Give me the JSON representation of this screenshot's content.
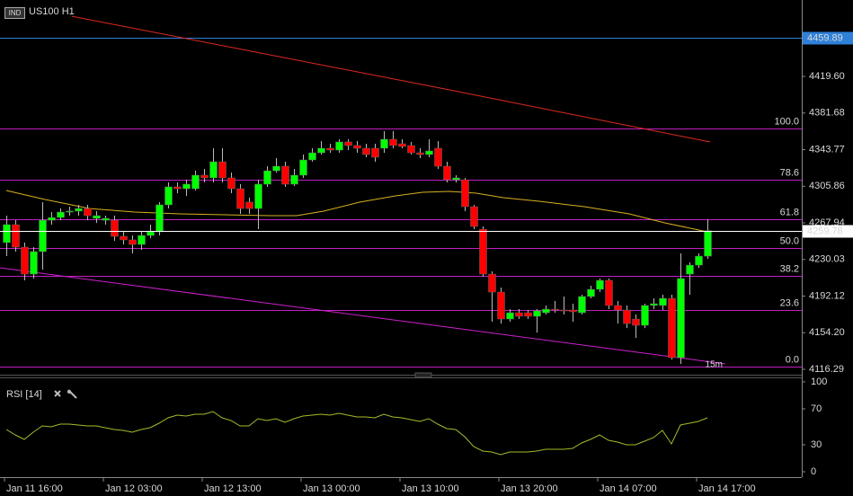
{
  "chart_data": [
    {
      "type": "candlestick",
      "title": "US100 H1",
      "badge": "IND",
      "categories": [
        "Jan 11 16:00",
        null,
        null,
        null,
        null,
        null,
        null,
        null,
        null,
        null,
        null,
        "Jan 12 03:00",
        null,
        null,
        null,
        null,
        null,
        null,
        null,
        null,
        null,
        null,
        "Jan 12 13:00",
        null,
        null,
        null,
        null,
        null,
        null,
        null,
        null,
        null,
        null,
        "Jan 13 00:00",
        null,
        null,
        null,
        null,
        null,
        null,
        null,
        null,
        null,
        null,
        "Jan 13 10:00",
        null,
        null,
        null,
        null,
        null,
        null,
        null,
        null,
        null,
        null,
        "Jan 13 20:00",
        null,
        null,
        null,
        null,
        null,
        null,
        null,
        null,
        null,
        null,
        "Jan 14 07:00",
        null,
        null,
        null,
        null,
        null,
        null,
        null,
        null,
        null,
        null,
        "Jan 14 17:00",
        null
      ],
      "open": [
        4247.5,
        4266.1,
        4242.8,
        4214.9,
        4238.2,
        4270.7,
        4273.5,
        4279.1,
        4280.1,
        4282.8,
        4272.6,
        4270.7,
        4270.7,
        4254.0,
        4250.3,
        4245.6,
        4254.9,
        4258.7,
        4286.6,
        4305.2,
        4303.3,
        4303.3,
        4317.3,
        4314.5,
        4331.2,
        4314.5,
        4303.3,
        4289.4,
        4282.8,
        4308.0,
        4321.9,
        4326.6,
        4308.0,
        4317.3,
        4333.1,
        4340.5,
        4345.2,
        4343.3,
        4351.7,
        4348.0,
        4345.2,
        4345.2,
        4345.2,
        4354.5,
        4349.8,
        4348.0,
        4340.5,
        4338.7,
        4345.2,
        4326.6,
        4312.6,
        4312.6,
        4284.7,
        4261.4,
        4214.9,
        4196.3,
        4168.4,
        4174.9,
        4174.9,
        4171.2,
        4174.9,
        4178.6,
        4177.7,
        4177.7,
        4174.9,
        4191.7,
        4199.1,
        4208.4,
        4182.4,
        4177.7,
        4168.4,
        4161.9,
        4182.4,
        4182.4,
        4189.8,
        4128.4,
        4214.9,
        4224.2,
        4233.5
      ],
      "high": [
        4275.4,
        4270.7,
        4247.5,
        4242.8,
        4289.4,
        4279.1,
        4282.8,
        4284.7,
        4286.6,
        4286.6,
        4280.1,
        4275.4,
        4275.4,
        4258.7,
        4254.9,
        4258.7,
        4266.1,
        4289.4,
        4309.8,
        4309.8,
        4312.6,
        4321.9,
        4323.8,
        4345.2,
        4345.2,
        4320.1,
        4308.0,
        4294.0,
        4312.6,
        4326.6,
        4335.0,
        4331.2,
        4323.8,
        4338.7,
        4345.2,
        4352.6,
        4349.8,
        4354.5,
        4354.5,
        4352.6,
        4349.8,
        4349.8,
        4362.9,
        4362.9,
        4354.5,
        4351.7,
        4345.2,
        4354.5,
        4352.6,
        4331.2,
        4317.3,
        4314.5,
        4286.6,
        4264.2,
        4217.7,
        4201.0,
        4178.6,
        4178.6,
        4177.7,
        4178.6,
        4182.4,
        4187.0,
        4191.7,
        4184.2,
        4193.5,
        4202.8,
        4210.3,
        4210.3,
        4187.0,
        4182.4,
        4173.1,
        4184.2,
        4189.8,
        4193.5,
        4193.5,
        4236.3,
        4227.0,
        4236.3,
        4271.7
      ],
      "low": [
        4233.5,
        4238.2,
        4208.4,
        4210.3,
        4219.6,
        4266.1,
        4270.7,
        4275.4,
        4275.4,
        4270.7,
        4267.9,
        4266.1,
        4249.4,
        4245.6,
        4236.3,
        4240.0,
        4252.1,
        4254.9,
        4282.8,
        4298.7,
        4295.9,
        4301.5,
        4309.8,
        4309.8,
        4309.8,
        4298.7,
        4277.3,
        4277.3,
        4261.4,
        4305.2,
        4320.1,
        4305.2,
        4306.1,
        4314.5,
        4331.2,
        4338.7,
        4340.5,
        4340.5,
        4343.3,
        4340.5,
        4335.9,
        4331.2,
        4340.5,
        4345.2,
        4345.2,
        4338.7,
        4335.0,
        4335.9,
        4323.8,
        4309.8,
        4309.8,
        4280.1,
        4261.4,
        4212.1,
        4165.6,
        4163.7,
        4165.6,
        4168.4,
        4168.4,
        4154.4,
        4173.1,
        4174.9,
        4173.1,
        4165.6,
        4173.1,
        4189.8,
        4196.3,
        4178.6,
        4163.7,
        4159.0,
        4148.9,
        4159.0,
        4178.6,
        4177.7,
        4126.5,
        4121.9,
        4193.5,
        4221.4,
        4230.7
      ],
      "close": [
        4266.1,
        4242.8,
        4214.9,
        4238.2,
        4270.7,
        4273.5,
        4279.1,
        4280.1,
        4282.8,
        4275.4,
        4275.4,
        4272.6,
        4254.0,
        4250.3,
        4245.6,
        4254.9,
        4258.7,
        4286.6,
        4305.2,
        4303.3,
        4308.0,
        4317.3,
        4314.5,
        4331.2,
        4314.5,
        4303.3,
        4282.8,
        4282.8,
        4308.0,
        4321.9,
        4326.6,
        4308.0,
        4317.3,
        4333.1,
        4340.5,
        4345.2,
        4343.3,
        4351.7,
        4348.0,
        4345.2,
        4338.7,
        4335.9,
        4354.5,
        4348.0,
        4347.0,
        4340.5,
        4338.7,
        4342.4,
        4326.6,
        4312.6,
        4314.5,
        4284.7,
        4264.2,
        4214.9,
        4196.3,
        4168.4,
        4174.9,
        4171.2,
        4171.2,
        4176.8,
        4178.6,
        4177.7,
        4176.8,
        4175.9,
        4191.7,
        4199.1,
        4208.4,
        4182.4,
        4177.7,
        4163.7,
        4161.9,
        4182.4,
        4184.2,
        4189.8,
        4128.4,
        4210.3,
        4224.2,
        4233.5,
        4259.78
      ],
      "up_color": "#00ff00",
      "down_color": "#ff0000",
      "ylim": [
        4109.8,
        4498.7
      ],
      "yticks": [
        4116.29,
        {
          "value": 4154.2,
          "label": "4154.20"
        },
        4192.12,
        4230.03,
        4267.94,
        4305.86,
        4343.77,
        4381.68,
        {
          "value": 4419.6,
          "label": "4419.60"
        }
      ],
      "price_line": {
        "value": 4459.89,
        "color": "#2f80d8"
      },
      "current_price": 4259.78,
      "fibonacci": {
        "high": 4365.6,
        "low": 4119.1,
        "color": "#c020c0",
        "levels": [
          {
            "value": 100,
            "label": "100.0"
          },
          78.6,
          61.8,
          {
            "value": 50,
            "label": "50.0"
          },
          38.2,
          23.6,
          {
            "value": 0,
            "label": "0.0"
          }
        ]
      },
      "lines": [
        {
          "color": "#e02a20",
          "x": [
            7.3,
            49.3,
            78.3
          ],
          "values": [
            4481.9,
            4405.7,
            4351.7
          ]
        },
        {
          "color": "#d8b020",
          "x": [
            0,
            4.3,
            9.3,
            14.3,
            19.3,
            24.3,
            29.3,
            32.3,
            35.3,
            39.3,
            43.3,
            46.3,
            49.3,
            52.3,
            55.3,
            59.3,
            64.3,
            69.3,
            73.3,
            78
          ],
          "values": [
            4301.5,
            4292.2,
            4282.8,
            4279.1,
            4277.3,
            4276.3,
            4275.4,
            4275.4,
            4280.1,
            4289.4,
            4295.9,
            4299.6,
            4300.5,
            4298.7,
            4294.0,
            4290.3,
            4284.7,
            4277.3,
            4267.9,
            4258.7
          ]
        },
        {
          "color": "#d020d0",
          "x": [
            -0.7,
            80
          ],
          "values": [
            4221.4,
            4121.9
          ]
        }
      ],
      "channel_label": "15m"
    },
    {
      "type": "line",
      "title": "RSI [14]",
      "color": "#a8b828",
      "values": [
        47,
        41,
        36,
        44,
        51,
        50,
        53,
        53,
        52,
        51,
        51,
        49,
        47,
        46,
        44,
        47,
        49,
        54,
        60,
        63,
        62,
        64,
        64,
        67,
        60,
        57,
        51,
        51,
        59,
        57,
        59,
        55,
        59,
        62,
        63,
        64,
        63,
        65,
        63,
        61,
        61,
        60,
        64,
        61,
        60,
        58,
        56,
        59,
        53,
        48,
        47,
        39,
        28,
        23,
        22,
        19,
        22,
        22,
        22,
        23,
        25,
        25,
        25,
        26,
        32,
        36,
        41,
        35,
        33,
        30,
        30,
        34,
        38,
        46,
        31,
        52,
        54,
        56,
        60
      ],
      "ylim": [
        0,
        100
      ],
      "yticks": [
        0,
        30,
        70,
        100
      ]
    }
  ]
}
